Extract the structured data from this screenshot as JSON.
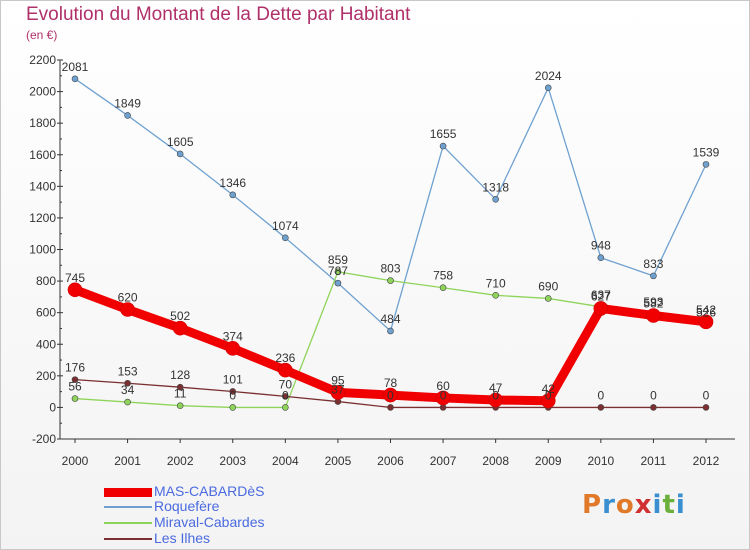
{
  "title": "Evolution du Montant de la Dette par Habitant",
  "subtitle": "(en €)",
  "logo": {
    "text": "Proxiti",
    "colors": [
      "#e0792a",
      "#3a8fd0",
      "#e0792a",
      "#d03030",
      "#3a8fd0",
      "#6bb03a",
      "#3a8fd0"
    ]
  },
  "chart_data": {
    "type": "line",
    "x": [
      2000,
      2001,
      2002,
      2003,
      2004,
      2005,
      2006,
      2007,
      2008,
      2009,
      2010,
      2011,
      2012
    ],
    "ylim": [
      -200,
      2200
    ],
    "yticks": [
      -200,
      0,
      200,
      400,
      600,
      800,
      1000,
      1200,
      1400,
      1600,
      1800,
      2000,
      2200
    ],
    "grid": false,
    "legend_position": "bottom-left",
    "series": [
      {
        "name": "MAS-CABARDèS",
        "color": "#f00000",
        "values": [
          745,
          620,
          502,
          374,
          236,
          95,
          78,
          60,
          47,
          42,
          627,
          582,
          542
        ]
      },
      {
        "name": "Roquefère",
        "color": "#6fa1d0",
        "values": [
          2081,
          1849,
          1605,
          1346,
          1074,
          787,
          484,
          1655,
          1318,
          2024,
          948,
          833,
          1539
        ]
      },
      {
        "name": "Miraval-Cabardes",
        "color": "#8fd45a",
        "values": [
          56,
          34,
          11,
          0,
          0,
          859,
          803,
          758,
          710,
          690,
          637,
          593,
          526
        ]
      },
      {
        "name": "Les Ilhes",
        "color": "#7a3030",
        "values": [
          176,
          153,
          128,
          101,
          70,
          37,
          0,
          0,
          0,
          0,
          0,
          0,
          0
        ]
      }
    ]
  }
}
